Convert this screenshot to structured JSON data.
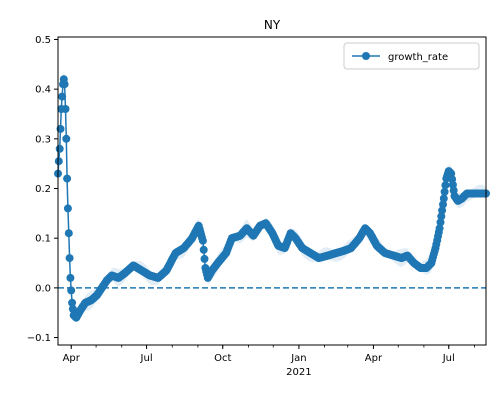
{
  "chart_data": {
    "type": "line",
    "title": "NY",
    "xlabel": "",
    "ylabel": "",
    "x_range": [
      "2020-03-16",
      "2021-08-15"
    ],
    "ylim": [
      -0.115,
      0.505
    ],
    "yticks": [
      -0.1,
      0.0,
      0.1,
      0.2,
      0.3,
      0.4,
      0.5
    ],
    "ytick_labels": [
      "−0.1",
      "0.0",
      "0.1",
      "0.2",
      "0.3",
      "0.4",
      "0.5"
    ],
    "xticks": [
      {
        "date": "2020-04-01",
        "label": "Apr",
        "sublabel": ""
      },
      {
        "date": "2020-07-01",
        "label": "Jul",
        "sublabel": ""
      },
      {
        "date": "2020-10-01",
        "label": "Oct",
        "sublabel": ""
      },
      {
        "date": "2021-01-01",
        "label": "Jan",
        "sublabel": "2021"
      },
      {
        "date": "2021-04-01",
        "label": "Apr",
        "sublabel": ""
      },
      {
        "date": "2021-07-01",
        "label": "Jul",
        "sublabel": ""
      }
    ],
    "reference_line": {
      "y": 0.0,
      "style": "dashed",
      "color": "#1f77b4"
    },
    "legend": {
      "position": "top-right",
      "entries": [
        "growth_rate"
      ]
    },
    "grid": false,
    "series": [
      {
        "name": "growth_rate",
        "color": "#1f77b4",
        "marker": "circle",
        "band_color": "#1f77b4",
        "points": [
          [
            "2020-03-16",
            0.23
          ],
          [
            "2020-03-18",
            0.28
          ],
          [
            "2020-03-20",
            0.36
          ],
          [
            "2020-03-22",
            0.41
          ],
          [
            "2020-03-23",
            0.42
          ],
          [
            "2020-03-24",
            0.41
          ],
          [
            "2020-03-25",
            0.36
          ],
          [
            "2020-03-26",
            0.3
          ],
          [
            "2020-03-27",
            0.22
          ],
          [
            "2020-03-28",
            0.16
          ],
          [
            "2020-03-29",
            0.11
          ],
          [
            "2020-03-30",
            0.06
          ],
          [
            "2020-03-31",
            0.02
          ],
          [
            "2020-04-02",
            -0.03
          ],
          [
            "2020-04-04",
            -0.055
          ],
          [
            "2020-04-07",
            -0.06
          ],
          [
            "2020-04-12",
            -0.045
          ],
          [
            "2020-04-18",
            -0.03
          ],
          [
            "2020-04-25",
            -0.025
          ],
          [
            "2020-05-02",
            -0.015
          ],
          [
            "2020-05-08",
            0.0
          ],
          [
            "2020-05-14",
            0.015
          ],
          [
            "2020-05-20",
            0.025
          ],
          [
            "2020-05-28",
            0.02
          ],
          [
            "2020-06-05",
            0.03
          ],
          [
            "2020-06-15",
            0.045
          ],
          [
            "2020-06-25",
            0.035
          ],
          [
            "2020-07-05",
            0.025
          ],
          [
            "2020-07-15",
            0.02
          ],
          [
            "2020-07-25",
            0.035
          ],
          [
            "2020-08-05",
            0.07
          ],
          [
            "2020-08-15",
            0.08
          ],
          [
            "2020-08-25",
            0.1
          ],
          [
            "2020-09-02",
            0.125
          ],
          [
            "2020-09-07",
            0.095
          ],
          [
            "2020-09-10",
            0.04
          ],
          [
            "2020-09-13",
            0.02
          ],
          [
            "2020-09-18",
            0.035
          ],
          [
            "2020-09-25",
            0.05
          ],
          [
            "2020-10-05",
            0.07
          ],
          [
            "2020-10-12",
            0.1
          ],
          [
            "2020-10-22",
            0.105
          ],
          [
            "2020-10-30",
            0.12
          ],
          [
            "2020-11-07",
            0.105
          ],
          [
            "2020-11-15",
            0.125
          ],
          [
            "2020-11-22",
            0.13
          ],
          [
            "2020-11-30",
            0.11
          ],
          [
            "2020-12-07",
            0.085
          ],
          [
            "2020-12-15",
            0.08
          ],
          [
            "2020-12-22",
            0.11
          ],
          [
            "2020-12-28",
            0.1
          ],
          [
            "2021-01-05",
            0.08
          ],
          [
            "2021-01-15",
            0.07
          ],
          [
            "2021-01-25",
            0.06
          ],
          [
            "2021-02-05",
            0.065
          ],
          [
            "2021-02-15",
            0.07
          ],
          [
            "2021-02-25",
            0.075
          ],
          [
            "2021-03-05",
            0.08
          ],
          [
            "2021-03-15",
            0.1
          ],
          [
            "2021-03-22",
            0.12
          ],
          [
            "2021-03-28",
            0.11
          ],
          [
            "2021-04-05",
            0.085
          ],
          [
            "2021-04-15",
            0.07
          ],
          [
            "2021-04-25",
            0.065
          ],
          [
            "2021-05-05",
            0.06
          ],
          [
            "2021-05-12",
            0.065
          ],
          [
            "2021-05-20",
            0.05
          ],
          [
            "2021-05-28",
            0.04
          ],
          [
            "2021-06-04",
            0.04
          ],
          [
            "2021-06-10",
            0.05
          ],
          [
            "2021-06-15",
            0.08
          ],
          [
            "2021-06-20",
            0.12
          ],
          [
            "2021-06-25",
            0.18
          ],
          [
            "2021-06-28",
            0.22
          ],
          [
            "2021-07-01",
            0.235
          ],
          [
            "2021-07-04",
            0.23
          ],
          [
            "2021-07-08",
            0.185
          ],
          [
            "2021-07-12",
            0.175
          ],
          [
            "2021-07-17",
            0.18
          ],
          [
            "2021-07-23",
            0.19
          ],
          [
            "2021-08-01",
            0.19
          ],
          [
            "2021-08-10",
            0.19
          ],
          [
            "2021-08-15",
            0.19
          ]
        ]
      }
    ]
  }
}
